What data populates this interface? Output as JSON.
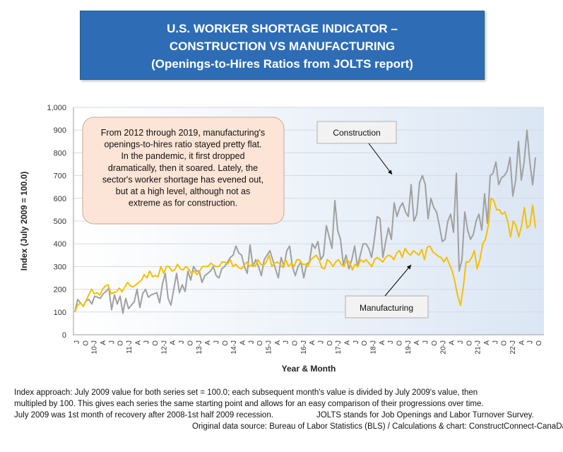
{
  "title": {
    "line1": "U.S. WORKER SHORTAGE INDICATOR –",
    "line2": "CONSTRUCTION VS MANUFACTURING",
    "line3": "(Openings-to-Hires Ratios from JOLTS report)"
  },
  "annotation": "From 2012 through 2019, manufacturing's openings-to-hires ratio stayed pretty flat. In the pandemic, it first dropped dramatically, then it soared. Lately, the sector's worker shortage has evened out, but at a high level, although not as extreme as for construction.",
  "annotation_lines": [
    "From 2012 through 2019, manufacturing's",
    "openings-to-hires ratio stayed pretty flat.",
    "In the pandemic, it first dropped",
    "dramatically, then it soared. Lately, the",
    "sector's worker shortage has evened out,",
    "but at a high level, although not as",
    "extreme as for construction."
  ],
  "footnote": {
    "line1": "Index approach: July 2009 value for both series set = 100.0; each subsequent month's value is divided by July 2009's value, then",
    "line2": "multipled by 100. This gives each series the same starting point and allows for an easy comparison of their progressions over time.",
    "line3a": "July 2009 was 1st month of recovery after 2008-1st half 2009 recession.",
    "line3b": "JOLTS stands for Job Openings and Labor Turnover Survey.",
    "line4": "Original data source: Bureau of Labor Statistics (BLS) / Calculations & chart: ConstructConnect-CanaData."
  },
  "colors": {
    "construction": "#a0a0a0",
    "manufacturing": "#f5c000",
    "title_bg": "#2e6db5",
    "callout_bg": "#fce4d6"
  },
  "chart_data": {
    "type": "line",
    "title": "U.S. WORKER SHORTAGE INDICATOR – CONSTRUCTION VS MANUFACTURING (Openings-to-Hires Ratios from JOLTS report)",
    "xlabel": "Year & Month",
    "ylabel": "Index (July 2009 = 100.0)",
    "ylim": [
      0,
      1000
    ],
    "yticks": [
      "0",
      "100",
      "200",
      "300",
      "400",
      "500",
      "600",
      "700",
      "800",
      "900",
      "1,000"
    ],
    "x_start": "2009-07",
    "x_end": "2022-10",
    "x_tick_labels": [
      "J",
      "O",
      "10-J",
      "A",
      "J",
      "O",
      "11-J",
      "A",
      "J",
      "O",
      "12-J",
      "A",
      "J",
      "O",
      "13-J",
      "A",
      "J",
      "O",
      "14-J",
      "A",
      "J",
      "O",
      "15-J",
      "A",
      "J",
      "O",
      "16-J",
      "A",
      "J",
      "O",
      "17-J",
      "A",
      "J",
      "O",
      "18-J",
      "A",
      "J",
      "O",
      "19-J",
      "A",
      "J",
      "O",
      "20-J",
      "A",
      "J",
      "O",
      "21-J",
      "A",
      "J",
      "O",
      "22-J",
      "A",
      "J",
      "O"
    ],
    "series": [
      {
        "name": "Construction",
        "values": [
          100,
          155,
          140,
          125,
          150,
          155,
          135,
          170,
          165,
          160,
          180,
          190,
          205,
          110,
          175,
          135,
          170,
          95,
          160,
          115,
          130,
          145,
          200,
          120,
          180,
          200,
          165,
          175,
          180,
          185,
          140,
          225,
          270,
          160,
          130,
          200,
          270,
          185,
          220,
          190,
          280,
          240,
          300,
          280,
          280,
          230,
          260,
          270,
          280,
          300,
          260,
          250,
          290,
          300,
          320,
          340,
          350,
          390,
          360,
          350,
          300,
          270,
          395,
          300,
          330,
          300,
          260,
          330,
          350,
          370,
          330,
          290,
          250,
          340,
          300,
          370,
          390,
          300,
          260,
          300,
          320,
          250,
          310,
          320,
          400,
          380,
          410,
          330,
          350,
          480,
          430,
          380,
          590,
          460,
          420,
          310,
          350,
          290,
          330,
          390,
          300,
          350,
          400,
          400,
          380,
          340,
          420,
          520,
          510,
          340,
          410,
          470,
          420,
          580,
          520,
          560,
          580,
          540,
          520,
          660,
          500,
          530,
          670,
          700,
          660,
          510,
          600,
          560,
          540,
          480,
          410,
          420,
          500,
          530,
          450,
          710,
          280,
          330,
          540,
          460,
          420,
          440,
          500,
          530,
          460,
          620,
          490,
          700,
          710,
          760,
          660,
          690,
          700,
          720,
          780,
          610,
          680,
          850,
          680,
          760,
          900,
          760,
          660,
          780
        ]
      },
      {
        "name": "Manufacturing",
        "values": [
          100,
          130,
          140,
          125,
          150,
          175,
          200,
          180,
          185,
          175,
          200,
          215,
          220,
          180,
          185,
          190,
          205,
          190,
          210,
          230,
          215,
          210,
          220,
          230,
          240,
          265,
          250,
          280,
          255,
          260,
          255,
          300,
          270,
          300,
          300,
          280,
          285,
          310,
          290,
          285,
          300,
          290,
          270,
          280,
          265,
          280,
          300,
          300,
          300,
          315,
          305,
          300,
          300,
          320,
          320,
          310,
          330,
          300,
          310,
          295,
          290,
          305,
          320,
          300,
          310,
          300,
          330,
          310,
          305,
          320,
          350,
          300,
          315,
          320,
          310,
          295,
          330,
          300,
          315,
          300,
          330,
          330,
          310,
          310,
          300,
          330,
          340,
          350,
          330,
          295,
          290,
          330,
          320,
          300,
          320,
          330,
          310,
          300,
          330,
          320,
          285,
          310,
          300,
          330,
          320,
          330,
          315,
          300,
          330,
          340,
          330,
          320,
          340,
          350,
          345,
          330,
          360,
          370,
          340,
          380,
          360,
          350,
          370,
          360,
          350,
          375,
          330,
          385,
          390,
          365,
          355,
          345,
          340,
          320,
          340,
          310,
          280,
          230,
          170,
          130,
          210,
          320,
          320,
          340,
          370,
          290,
          330,
          400,
          420,
          480,
          600,
          590,
          550,
          550,
          530,
          540,
          500,
          430,
          500,
          480,
          430,
          480,
          560,
          470,
          480,
          570,
          470
        ]
      }
    ],
    "annotations": [
      "Construction",
      "Manufacturing"
    ]
  }
}
